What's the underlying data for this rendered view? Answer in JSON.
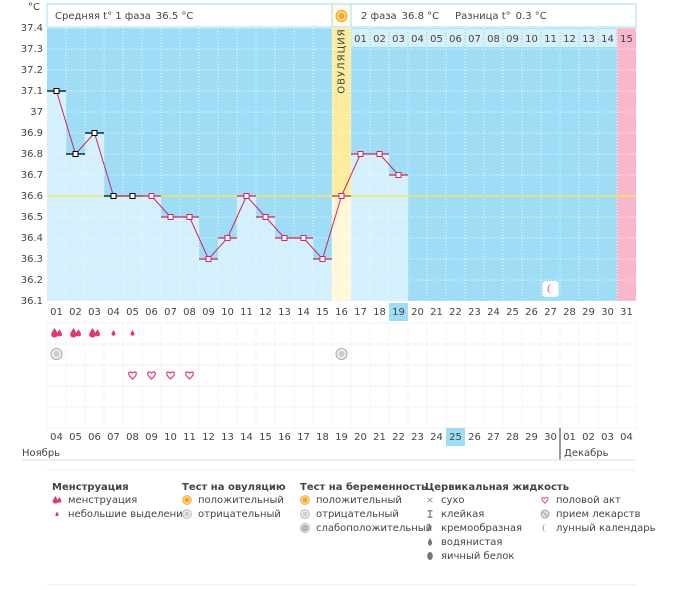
{
  "chart_data": {
    "type": "line",
    "y_unit": "°C",
    "ylim": [
      36.1,
      37.4
    ],
    "yticks": [
      37.4,
      37.3,
      37.2,
      37.1,
      37,
      36.9,
      36.8,
      36.7,
      36.6,
      36.5,
      36.4,
      36.3,
      36.2,
      36.1
    ],
    "grid": true,
    "categories": [
      "01",
      "02",
      "03",
      "04",
      "05",
      "06",
      "07",
      "08",
      "09",
      "10",
      "11",
      "12",
      "13",
      "14",
      "15",
      "16",
      "17",
      "18",
      "19",
      "20",
      "21",
      "22",
      "23",
      "24",
      "25",
      "26",
      "27",
      "28",
      "29",
      "30",
      "31"
    ],
    "series": [
      {
        "color": "#d0245e",
        "values": [
          37.1,
          36.8,
          36.9,
          36.6,
          36.6,
          36.6,
          36.5,
          36.5,
          36.3,
          36.4,
          36.6,
          36.5,
          36.4,
          36.4,
          36.3,
          36.6,
          36.8,
          36.8,
          36.7,
          null,
          null,
          null,
          null,
          null,
          null,
          null,
          null,
          null,
          null,
          null,
          null
        ],
        "marker_colors": [
          "#000000",
          "#000000",
          "#000000",
          "#000000",
          "#000000",
          "#d0245e",
          "#d0245e",
          "#d0245e",
          "#d0245e",
          "#d0245e",
          "#d0245e",
          "#d0245e",
          "#d0245e",
          "#d0245e",
          "#d0245e",
          "#d0245e",
          "#d0245e",
          "#d0245e",
          "#d0245e"
        ]
      }
    ],
    "cover_line": 36.6,
    "cover_line_color": "#f2e46a",
    "background_color": "#9fdcf6",
    "bar_color": "#d3f0fc",
    "ovulation_color": "#fbec9e",
    "ovulation_bar_color": "#fff8d9",
    "next_cycle_color": "#f8b7ca",
    "ovulation_label": "ОВУЛЯЦИЯ",
    "phase2_days": [
      "01",
      "02",
      "03",
      "04",
      "05",
      "06",
      "07",
      "08",
      "09",
      "10",
      "11",
      "12",
      "13",
      "14",
      "15"
    ],
    "plot_icons": [
      null,
      null,
      null,
      null,
      null,
      null,
      null,
      null,
      null,
      null,
      null,
      null,
      null,
      null,
      null,
      null,
      null,
      null,
      null,
      null,
      null,
      null,
      null,
      null,
      null,
      null,
      "moon",
      null,
      null,
      null,
      null
    ]
  },
  "header": {
    "phase1_label": "Средняя t° 1 фаза",
    "phase1_value": "36.5 °C",
    "phase2_label": "2 фаза",
    "phase2_value": "36.8 °C",
    "difference_label": "Разница t°",
    "difference_value": "0.3 °C"
  },
  "symbol_rows": [
    [
      "heavy",
      "heavy",
      "heavy",
      "light",
      "light",
      null,
      null,
      null,
      null,
      null,
      null,
      null,
      null,
      null,
      null,
      null,
      null,
      null,
      null,
      null,
      null,
      null,
      null,
      null,
      null,
      null,
      null,
      null,
      null,
      null,
      null
    ],
    [
      "negative",
      null,
      null,
      null,
      null,
      null,
      null,
      null,
      null,
      null,
      null,
      null,
      null,
      null,
      null,
      "negative",
      null,
      null,
      null,
      null,
      null,
      null,
      null,
      null,
      null,
      null,
      null,
      null,
      null,
      null,
      null
    ],
    [
      null,
      null,
      null,
      null,
      "heart",
      "heart",
      "heart",
      "heart",
      null,
      null,
      null,
      null,
      null,
      null,
      null,
      null,
      null,
      null,
      null,
      null,
      null,
      null,
      null,
      null,
      null,
      null,
      null,
      null,
      null,
      null,
      null
    ]
  ],
  "dates": [
    {
      "label": "04"
    },
    {
      "label": "05"
    },
    {
      "label": "06"
    },
    {
      "label": "07"
    },
    {
      "label": "08"
    },
    {
      "label": "09",
      "weekend": true
    },
    {
      "label": "10",
      "weekend": true
    },
    {
      "label": "11"
    },
    {
      "label": "12"
    },
    {
      "label": "13"
    },
    {
      "label": "14"
    },
    {
      "label": "15"
    },
    {
      "label": "16",
      "weekend": true
    },
    {
      "label": "17",
      "weekend": true
    },
    {
      "label": "18"
    },
    {
      "label": "19"
    },
    {
      "label": "20"
    },
    {
      "label": "21"
    },
    {
      "label": "22"
    },
    {
      "label": "23",
      "weekend": true
    },
    {
      "label": "24",
      "weekend": true
    },
    {
      "label": "25"
    },
    {
      "label": "26"
    },
    {
      "label": "27"
    },
    {
      "label": "28"
    },
    {
      "label": "29"
    },
    {
      "label": "30",
      "weekend": true
    },
    {
      "label": "01",
      "weekend": true,
      "month_start": true
    },
    {
      "label": "02"
    },
    {
      "label": "03"
    },
    {
      "label": "04"
    }
  ],
  "months": [
    "Ноябрь",
    "Декабрь"
  ],
  "weekend_color": "#e0245e",
  "legend": [
    {
      "title": "Менструация",
      "items": [
        {
          "icon": "heavy",
          "label": "менструация"
        },
        {
          "icon": "light",
          "label": "небольшие выделения"
        }
      ]
    },
    {
      "title": "Тест на овуляцию",
      "items": [
        {
          "icon": "positive",
          "label": "положительный"
        },
        {
          "icon": "negative",
          "label": "отрицательный"
        }
      ]
    },
    {
      "title": "Тест на беременность",
      "items": [
        {
          "icon": "positive",
          "label": "положительный"
        },
        {
          "icon": "negative",
          "label": "отрицательный"
        },
        {
          "icon": "weak",
          "label": "слабоположительный"
        }
      ]
    },
    {
      "title": "Цервикальная жидкость",
      "items": [
        {
          "icon": "dry",
          "label": "сухо"
        },
        {
          "icon": "sticky",
          "label": "клейкая"
        },
        {
          "icon": "creamy",
          "label": "кремообразная"
        },
        {
          "icon": "watery",
          "label": "водянистая"
        },
        {
          "icon": "eggwhite",
          "label": "яичный белок"
        }
      ]
    },
    {
      "items": [
        {
          "icon": "heart",
          "label": "половой акт"
        },
        {
          "icon": "pill",
          "label": "прием лекарств"
        },
        {
          "icon": "moon",
          "label": "лунный календарь"
        }
      ]
    }
  ]
}
